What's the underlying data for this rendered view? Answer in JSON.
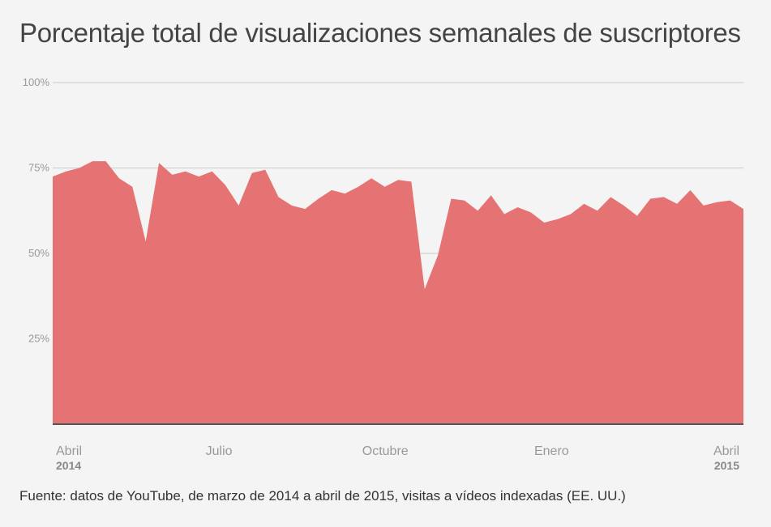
{
  "chart_data": {
    "type": "area",
    "title": "Porcentaje total de visualizaciones semanales de suscriptores",
    "source": "Fuente: datos de YouTube, de marzo de 2014 a abril de 2015, visitas a vídeos indexadas (EE. UU.)",
    "ylim": [
      0,
      100
    ],
    "yticks": [
      "25%",
      "50%",
      "75%",
      "100%"
    ],
    "ytick_values": [
      25,
      50,
      75,
      100
    ],
    "xlim": [
      0,
      54
    ],
    "xticks": [
      {
        "pos": 1.5,
        "label": "Abril",
        "year": "2014",
        "align": "start"
      },
      {
        "pos": 13,
        "label": "Julio",
        "year": "",
        "align": "middle"
      },
      {
        "pos": 26,
        "label": "Octubre",
        "year": "",
        "align": "middle"
      },
      {
        "pos": 39,
        "label": "Enero",
        "year": "",
        "align": "middle"
      },
      {
        "pos": 52,
        "label": "Abril",
        "year": "2015",
        "align": "end"
      }
    ],
    "grid": true,
    "color": "#e57373",
    "series": [
      {
        "values": [
          72.5,
          74,
          75,
          77,
          77,
          72,
          69.5,
          53.5,
          76.5,
          73,
          74,
          72.5,
          74,
          70,
          64,
          73.5,
          74.5,
          66.5,
          64,
          63,
          66,
          68.5,
          67.5,
          69.5,
          72,
          69.5,
          71.5,
          71,
          39.5,
          49.5,
          66,
          65.5,
          62.5,
          67,
          61.5,
          63.5,
          62,
          59,
          60,
          61.5,
          64.5,
          62.5,
          66.5,
          64,
          61,
          66,
          66.5,
          64.5,
          68.5,
          64,
          65,
          65.5,
          63
        ]
      }
    ]
  }
}
